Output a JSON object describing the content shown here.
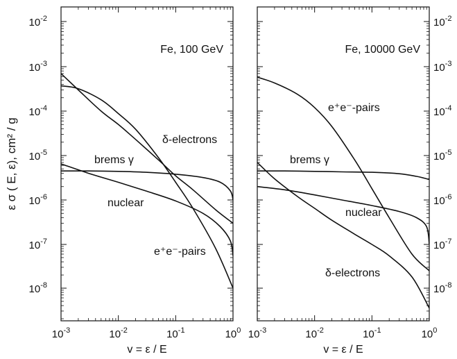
{
  "chart_data": {
    "type": "line",
    "ylabel": "ε σ ( E, ε), cm² / g",
    "y_scale": "log",
    "x_scale": "log",
    "grid": false,
    "ylim": [
      1e-09,
      0.01
    ],
    "xlim": [
      0.001,
      1
    ],
    "yticks": [
      {
        "base": "10",
        "exp": "-2"
      },
      {
        "base": "10",
        "exp": "-3"
      },
      {
        "base": "10",
        "exp": "-4"
      },
      {
        "base": "10",
        "exp": "-5"
      },
      {
        "base": "10",
        "exp": "-6"
      },
      {
        "base": "10",
        "exp": "-7"
      },
      {
        "base": "10",
        "exp": "-8"
      }
    ],
    "xticks": [
      {
        "base": "10",
        "exp": "-3"
      },
      {
        "base": "10",
        "exp": "-2"
      },
      {
        "base": "10",
        "exp": "-1"
      },
      {
        "base": "10",
        "exp": "0"
      }
    ],
    "panels": [
      {
        "annotation": "Fe, 100 GeV",
        "xlabel": "v = ε / E",
        "series": [
          {
            "label": "brems γ",
            "x": [
              0.001,
              0.003,
              0.01,
              0.03,
              0.1,
              0.3,
              0.6,
              0.9,
              1.0
            ],
            "y": [
              4.5e-06,
              4.5e-06,
              4.4e-06,
              4.2e-06,
              3.8e-06,
              3.2e-06,
              2.5e-06,
              1.6e-06,
              1e-06
            ]
          },
          {
            "label": "δ-electrons",
            "x": [
              0.001,
              0.002,
              0.005,
              0.01,
              0.02,
              0.05,
              0.1,
              0.2,
              0.5,
              1.0
            ],
            "y": [
              0.0007,
              0.0003,
              0.0001,
              5e-05,
              2.3e-05,
              8e-06,
              3.5e-06,
              1.7e-06,
              6e-07,
              3e-07
            ]
          },
          {
            "label": "nuclear",
            "x": [
              0.001,
              0.003,
              0.01,
              0.03,
              0.1,
              0.3,
              0.6,
              0.9,
              1.0
            ],
            "y": [
              6.5e-06,
              4e-06,
              2.5e-06,
              1.6e-06,
              9.5e-07,
              5e-07,
              2.5e-07,
              1.2e-07,
              5.5e-08
            ]
          },
          {
            "label": "e⁺e⁻-pairs",
            "x": [
              0.001,
              0.002,
              0.005,
              0.01,
              0.02,
              0.05,
              0.1,
              0.2,
              0.5,
              1.0
            ],
            "y": [
              0.00037,
              0.00032,
              0.00018,
              8.8e-05,
              3.9e-05,
              9e-06,
              2.5e-06,
              6.5e-07,
              8e-08,
              1e-08
            ]
          }
        ],
        "labels": [
          {
            "text": "δ-electrons",
            "series": "δ-electrons"
          },
          {
            "text": "brems γ",
            "series": "brems γ"
          },
          {
            "text": "nuclear",
            "series": "nuclear"
          },
          {
            "text": "e⁺e⁻-pairs",
            "series": "e⁺e⁻-pairs"
          }
        ]
      },
      {
        "annotation": "Fe, 10000 GeV",
        "xlabel": "v = ε / E",
        "series": [
          {
            "label": "e⁺e⁻-pairs",
            "x": [
              0.001,
              0.002,
              0.005,
              0.01,
              0.02,
              0.05,
              0.1,
              0.2,
              0.5,
              1.0
            ],
            "y": [
              0.00058,
              0.00043,
              0.00024,
              0.00012,
              4.5e-05,
              8e-06,
              1.8e-06,
              4e-07,
              6e-08,
              2.5e-08
            ]
          },
          {
            "label": "brems γ",
            "x": [
              0.001,
              0.003,
              0.01,
              0.03,
              0.1,
              0.3,
              0.6,
              0.9,
              1.0
            ],
            "y": [
              4.5e-06,
              4.5e-06,
              4.4e-06,
              4.3e-06,
              4.2e-06,
              3.9e-06,
              3.4e-06,
              3e-06,
              2.9e-06
            ]
          },
          {
            "label": "nuclear",
            "x": [
              0.001,
              0.003,
              0.01,
              0.03,
              0.1,
              0.3,
              0.6,
              0.9,
              1.0
            ],
            "y": [
              2e-06,
              1.7e-06,
              1.3e-06,
              1e-06,
              7.5e-07,
              5.5e-07,
              4e-07,
              2.5e-07,
              1e-07
            ]
          },
          {
            "label": "δ-electrons",
            "x": [
              0.001,
              0.002,
              0.005,
              0.01,
              0.02,
              0.05,
              0.1,
              0.2,
              0.5,
              1.0
            ],
            "y": [
              7e-06,
              3e-06,
              1.2e-06,
              6.5e-07,
              3.5e-07,
              1.7e-07,
              1e-07,
              5.5e-08,
              1.8e-08,
              3.5e-09
            ]
          }
        ],
        "labels": [
          {
            "text": "e⁺e⁻-pairs",
            "series": "e⁺e⁻-pairs"
          },
          {
            "text": "brems γ",
            "series": "brems γ"
          },
          {
            "text": "nuclear",
            "series": "nuclear"
          },
          {
            "text": "δ-electrons",
            "series": "δ-electrons"
          }
        ]
      }
    ]
  },
  "colors": {
    "line": "#111111",
    "frame": "#111111",
    "background": "#ffffff"
  }
}
